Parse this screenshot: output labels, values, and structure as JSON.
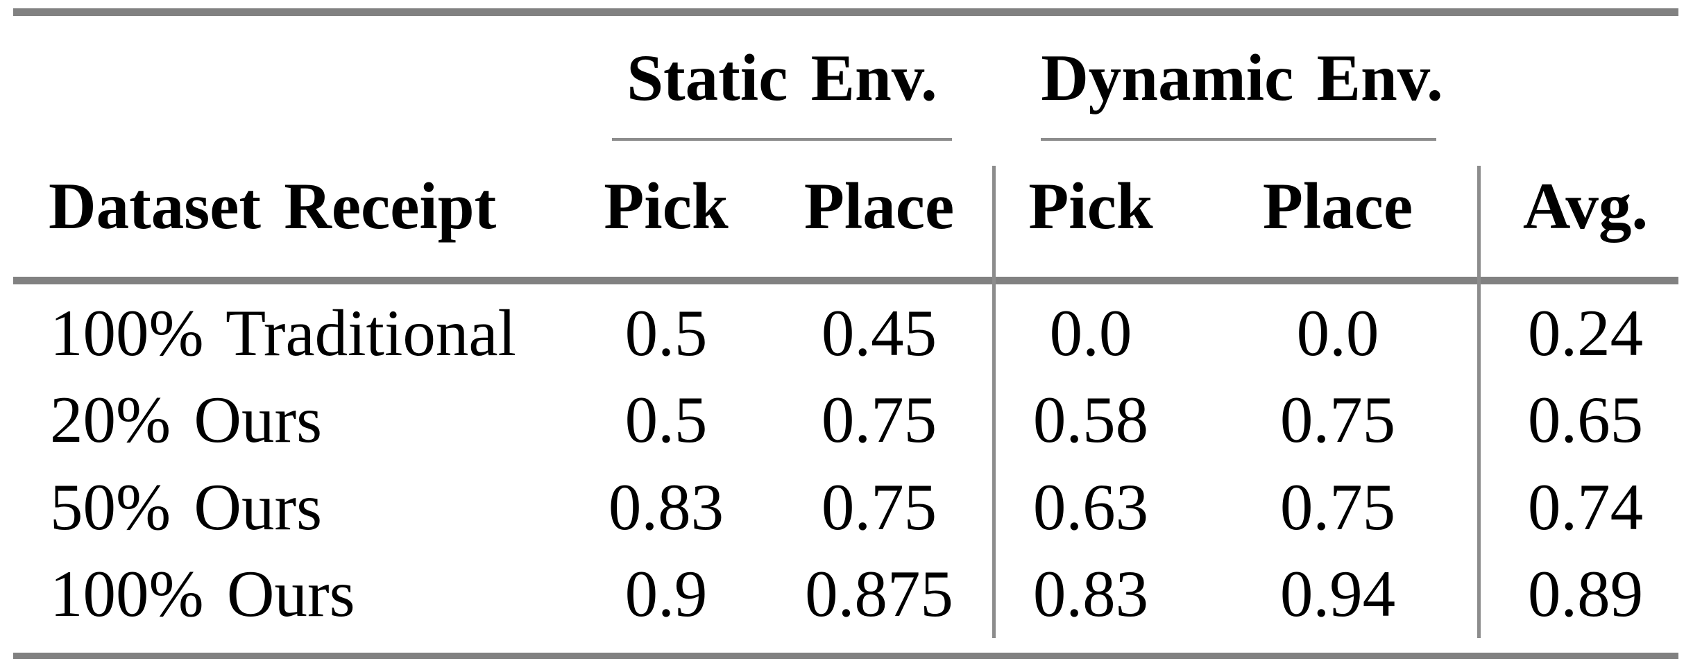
{
  "table": {
    "groups": [
      {
        "label": "Static Env."
      },
      {
        "label": "Dynamic Env."
      }
    ],
    "headers": [
      "Dataset Receipt",
      "Pick",
      "Place",
      "Pick",
      "Place",
      "Avg."
    ],
    "rows": [
      [
        "100% Traditional",
        "0.5",
        "0.45",
        "0.0",
        "0.0",
        "0.24"
      ],
      [
        "20% Ours",
        "0.5",
        "0.75",
        "0.58",
        "0.75",
        "0.65"
      ],
      [
        "50% Ours",
        "0.83",
        "0.75",
        "0.63",
        "0.75",
        "0.74"
      ],
      [
        "100% Ours",
        "0.9",
        "0.875",
        "0.83",
        "0.94",
        "0.89"
      ]
    ],
    "colors": {
      "heavy_rule": "#818181",
      "light_rule": "#8c8c8c",
      "text": "#000000",
      "background": "#ffffff"
    }
  },
  "chart_data": {
    "type": "table",
    "column_groups": [
      "Static Env.",
      "Dynamic Env."
    ],
    "columns": [
      "Dataset Receipt",
      "Static Env. Pick",
      "Static Env. Place",
      "Dynamic Env. Pick",
      "Dynamic Env. Place",
      "Avg."
    ],
    "rows": [
      {
        "dataset_receipt": "100% Traditional",
        "static_pick": 0.5,
        "static_place": 0.45,
        "dynamic_pick": 0.0,
        "dynamic_place": 0.0,
        "avg": 0.24
      },
      {
        "dataset_receipt": "20% Ours",
        "static_pick": 0.5,
        "static_place": 0.75,
        "dynamic_pick": 0.58,
        "dynamic_place": 0.75,
        "avg": 0.65
      },
      {
        "dataset_receipt": "50% Ours",
        "static_pick": 0.83,
        "static_place": 0.75,
        "dynamic_pick": 0.63,
        "dynamic_place": 0.75,
        "avg": 0.74
      },
      {
        "dataset_receipt": "100% Ours",
        "static_pick": 0.9,
        "static_place": 0.875,
        "dynamic_pick": 0.83,
        "dynamic_place": 0.94,
        "avg": 0.89
      }
    ]
  }
}
